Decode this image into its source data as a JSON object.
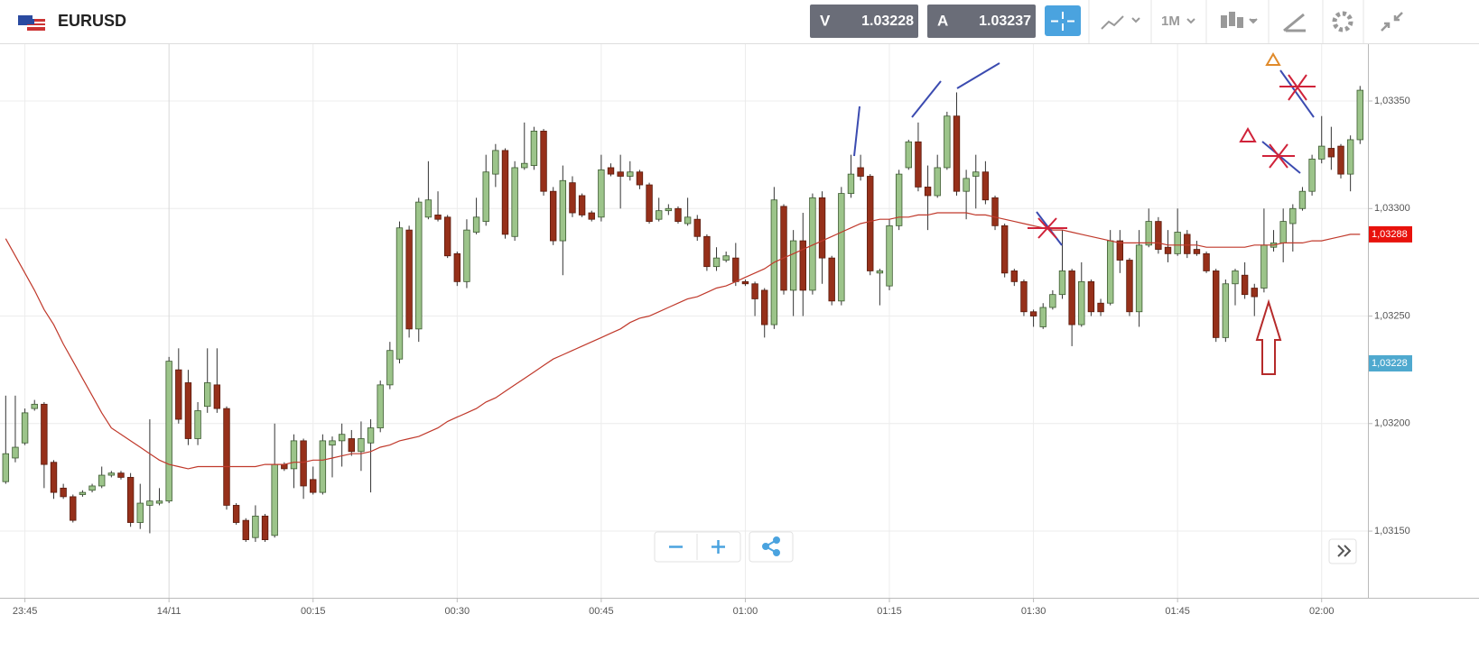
{
  "header": {
    "symbol": "EURUSD",
    "sell": {
      "label": "V",
      "price": "1.03228"
    },
    "buy": {
      "label": "A",
      "price": "1.03237"
    },
    "timeframe": "1M"
  },
  "chart_data": {
    "type": "candlestick",
    "categories": [
      null,
      null,
      "23:45",
      null,
      null,
      null,
      null,
      null,
      null,
      null,
      null,
      null,
      null,
      null,
      null,
      null,
      null,
      "14/11",
      null,
      null,
      null,
      null,
      null,
      null,
      null,
      null,
      null,
      null,
      null,
      null,
      null,
      null,
      "00:15",
      null,
      null,
      null,
      null,
      null,
      null,
      null,
      null,
      null,
      null,
      null,
      null,
      null,
      null,
      "00:30",
      null,
      null,
      null,
      null,
      null,
      null,
      null,
      null,
      null,
      null,
      null,
      null,
      null,
      null,
      "00:45",
      null,
      null,
      null,
      null,
      null,
      null,
      null,
      null,
      null,
      null,
      null,
      null,
      null,
      null,
      "01:00",
      null,
      null,
      null,
      null,
      null,
      null,
      null,
      null,
      null,
      null,
      null,
      null,
      null,
      null,
      "01:15",
      null,
      null,
      null,
      null,
      null,
      null,
      null,
      null,
      null,
      null,
      null,
      null,
      null,
      null,
      "01:30",
      null,
      null,
      null,
      null,
      null,
      null,
      null,
      null,
      null,
      null,
      null,
      null,
      null,
      null,
      "01:45",
      null,
      null,
      null,
      null,
      null,
      null,
      null,
      null,
      null,
      null,
      null,
      null,
      null,
      null,
      "02:00",
      null,
      null,
      null,
      null
    ],
    "open": [
      1.03173,
      1.03184,
      1.03191,
      1.03207,
      1.03209,
      1.03182,
      1.0317,
      1.03166,
      1.03167,
      1.03169,
      1.03171,
      1.03176,
      1.03177,
      1.03175,
      1.03154,
      1.03162,
      1.03163,
      1.03164,
      1.03225,
      1.03219,
      1.03193,
      1.03208,
      1.03218,
      1.03207,
      1.03162,
      1.03155,
      1.03147,
      1.03157,
      1.03148,
      1.03181,
      1.03179,
      1.03192,
      1.03174,
      1.03168,
      1.0319,
      1.03192,
      1.03193,
      1.03187,
      1.03191,
      1.03198,
      1.03218,
      1.0323,
      1.0329,
      1.03244,
      1.03296,
      1.03297,
      1.03296,
      1.03279,
      1.03266,
      1.03289,
      1.03294,
      1.03316,
      1.03327,
      1.03287,
      1.03319,
      1.0332,
      1.03336,
      1.03308,
      1.03285,
      1.03312,
      1.03306,
      1.03298,
      1.03296,
      1.03319,
      1.03317,
      1.03315,
      1.03317,
      1.03311,
      1.03295,
      1.03299,
      1.033,
      1.03293,
      1.03295,
      1.03287,
      1.03273,
      1.03276,
      1.03277,
      1.03266,
      1.03265,
      1.03262,
      1.03246,
      1.03301,
      1.03262,
      1.03285,
      1.03262,
      1.03305,
      1.03277,
      1.03257,
      1.03307,
      1.03319,
      1.03315,
      1.0327,
      1.03264,
      1.03292,
      1.03319,
      1.03331,
      1.0331,
      1.03306,
      1.03319,
      1.03343,
      1.03308,
      1.03315,
      1.03317,
      1.03305,
      1.03292,
      1.03271,
      1.03266,
      1.03252,
      1.03245,
      1.03254,
      1.0326,
      1.03271,
      1.03246,
      1.03266,
      1.03256,
      1.03256,
      1.03285,
      1.03276,
      1.03252,
      1.03283,
      1.03294,
      1.03282,
      1.03279,
      1.03288,
      1.03281,
      1.03279,
      1.03271,
      1.0324,
      1.03265,
      1.03269,
      1.03263,
      1.03263,
      1.03282,
      1.03284,
      1.03293,
      1.033,
      1.03308,
      1.03323,
      1.03328,
      1.03329,
      1.03316,
      1.03332
    ],
    "high": [
      1.03213,
      1.03213,
      1.03207,
      1.03211,
      1.0321,
      1.03183,
      1.03172,
      1.03167,
      1.03169,
      1.03172,
      1.0318,
      1.03178,
      1.03178,
      1.03177,
      1.03172,
      1.03202,
      1.0317,
      1.03231,
      1.03235,
      1.03225,
      1.0321,
      1.03235,
      1.03235,
      1.03208,
      1.03163,
      1.03156,
      1.03162,
      1.03158,
      1.032,
      1.03182,
      1.03195,
      1.03193,
      1.0318,
      1.03195,
      1.03194,
      1.032,
      1.03197,
      1.03201,
      1.03202,
      1.0322,
      1.03238,
      1.03294,
      1.03292,
      1.03305,
      1.03322,
      1.03308,
      1.03297,
      1.0328,
      1.03295,
      1.03305,
      1.03325,
      1.0333,
      1.03328,
      1.03322,
      1.0334,
      1.03338,
      1.03337,
      1.0331,
      1.0332,
      1.03315,
      1.03307,
      1.03299,
      1.03325,
      1.03321,
      1.03325,
      1.03322,
      1.03318,
      1.03312,
      1.03305,
      1.03302,
      1.03301,
      1.03305,
      1.03297,
      1.03288,
      1.03282,
      1.0328,
      1.03284,
      1.03267,
      1.03266,
      1.03263,
      1.0331,
      1.03302,
      1.0329,
      1.03298,
      1.03307,
      1.03308,
      1.03278,
      1.0331,
      1.03325,
      1.03325,
      1.03316,
      1.03272,
      1.03295,
      1.03318,
      1.03332,
      1.0334,
      1.0332,
      1.03325,
      1.03345,
      1.03354,
      1.03318,
      1.03325,
      1.03322,
      1.03306,
      1.03293,
      1.03272,
      1.03267,
      1.03253,
      1.03256,
      1.03262,
      1.0329,
      1.03272,
      1.03275,
      1.03267,
      1.03258,
      1.0329,
      1.0329,
      1.03277,
      1.0329,
      1.033,
      1.03296,
      1.0329,
      1.033,
      1.0329,
      1.03285,
      1.0328,
      1.03272,
      1.03267,
      1.03272,
      1.03275,
      1.03265,
      1.033,
      1.0329,
      1.033,
      1.03302,
      1.0331,
      1.03325,
      1.03343,
      1.03338,
      1.0333,
      1.03334,
      1.03357
    ],
    "low": [
      1.03172,
      1.03182,
      1.0319,
      1.03206,
      1.0317,
      1.03165,
      1.03165,
      1.03154,
      1.03166,
      1.03168,
      1.0317,
      1.03175,
      1.03174,
      1.03152,
      1.03151,
      1.03149,
      1.03162,
      1.03163,
      1.032,
      1.0319,
      1.0319,
      1.03205,
      1.03205,
      1.0316,
      1.03153,
      1.03145,
      1.03145,
      1.03145,
      1.03147,
      1.03178,
      1.0317,
      1.03165,
      1.03167,
      1.03167,
      1.03175,
      1.0318,
      1.03185,
      1.03178,
      1.03168,
      1.03196,
      1.03216,
      1.03228,
      1.0324,
      1.03238,
      1.03295,
      1.03294,
      1.03277,
      1.03264,
      1.03263,
      1.03288,
      1.03292,
      1.0331,
      1.03286,
      1.03285,
      1.03318,
      1.03318,
      1.03306,
      1.03283,
      1.03269,
      1.03296,
      1.03296,
      1.03294,
      1.03294,
      1.03315,
      1.033,
      1.03313,
      1.03309,
      1.03293,
      1.03294,
      1.03297,
      1.03293,
      1.03292,
      1.03285,
      1.03271,
      1.03271,
      1.03275,
      1.03264,
      1.03264,
      1.0325,
      1.0324,
      1.03244,
      1.0326,
      1.0325,
      1.0325,
      1.0326,
      1.03265,
      1.03255,
      1.03255,
      1.03305,
      1.03313,
      1.03269,
      1.03255,
      1.03262,
      1.0329,
      1.03318,
      1.03308,
      1.0329,
      1.03305,
      1.03318,
      1.03306,
      1.03295,
      1.033,
      1.03302,
      1.0329,
      1.03268,
      1.03264,
      1.0325,
      1.03245,
      1.03244,
      1.03253,
      1.03258,
      1.03236,
      1.03245,
      1.0325,
      1.0325,
      1.03255,
      1.0327,
      1.0325,
      1.03245,
      1.03282,
      1.03279,
      1.03275,
      1.03278,
      1.03277,
      1.03278,
      1.0327,
      1.03238,
      1.03238,
      1.03255,
      1.03258,
      1.0325,
      1.03261,
      1.0328,
      1.03275,
      1.0328,
      1.03299,
      1.03306,
      1.03321,
      1.03318,
      1.03314,
      1.03308,
      1.0333
    ],
    "close": [
      1.03186,
      1.03189,
      1.03205,
      1.03209,
      1.03181,
      1.03168,
      1.03166,
      1.03155,
      1.03168,
      1.03171,
      1.03176,
      1.03177,
      1.03175,
      1.03154,
      1.03163,
      1.03164,
      1.03164,
      1.03229,
      1.03202,
      1.03193,
      1.03206,
      1.03219,
      1.03207,
      1.03162,
      1.03154,
      1.03146,
      1.03157,
      1.03146,
      1.03181,
      1.03179,
      1.03192,
      1.03171,
      1.03168,
      1.03192,
      1.03192,
      1.03195,
      1.03187,
      1.03193,
      1.03198,
      1.03218,
      1.03234,
      1.03291,
      1.03244,
      1.03303,
      1.03304,
      1.03295,
      1.03278,
      1.03266,
      1.0329,
      1.03296,
      1.03317,
      1.03327,
      1.03288,
      1.03319,
      1.03321,
      1.03336,
      1.03308,
      1.03285,
      1.03313,
      1.03298,
      1.03297,
      1.03295,
      1.03318,
      1.03316,
      1.03315,
      1.03317,
      1.03311,
      1.03294,
      1.03299,
      1.033,
      1.03294,
      1.03296,
      1.03287,
      1.03273,
      1.03277,
      1.03278,
      1.03266,
      1.03265,
      1.03258,
      1.03246,
      1.03304,
      1.03262,
      1.03285,
      1.03262,
      1.03305,
      1.03277,
      1.03257,
      1.03307,
      1.03316,
      1.03315,
      1.03271,
      1.03271,
      1.03292,
      1.03316,
      1.03331,
      1.0331,
      1.03306,
      1.03319,
      1.03343,
      1.03308,
      1.03314,
      1.03317,
      1.03304,
      1.03292,
      1.0327,
      1.03266,
      1.03252,
      1.0325,
      1.03254,
      1.0326,
      1.03271,
      1.03246,
      1.03266,
      1.03252,
      1.03252,
      1.03285,
      1.03276,
      1.03252,
      1.03283,
      1.03294,
      1.03281,
      1.03279,
      1.03289,
      1.03279,
      1.03279,
      1.03271,
      1.0324,
      1.03265,
      1.03271,
      1.0326,
      1.03259,
      1.03283,
      1.03284,
      1.03294,
      1.033,
      1.03308,
      1.03323,
      1.03329,
      1.03324,
      1.03316,
      1.03332,
      1.03355
    ],
    "up_color": "#9cc48a",
    "down_color": "#96301a",
    "moving_average": {
      "color": "#c0392b",
      "values": [
        1.03286,
        1.03278,
        1.0327,
        1.03262,
        1.03253,
        1.03246,
        1.03237,
        1.03229,
        1.03221,
        1.03213,
        1.03205,
        1.03198,
        1.03195,
        1.03192,
        1.03189,
        1.03186,
        1.03183,
        1.03181,
        1.0318,
        1.03179,
        1.0318,
        1.0318,
        1.0318,
        1.0318,
        1.0318,
        1.0318,
        1.0318,
        1.03181,
        1.03181,
        1.03181,
        1.03182,
        1.03182,
        1.03183,
        1.03183,
        1.03184,
        1.03185,
        1.03186,
        1.03186,
        1.03187,
        1.03189,
        1.0319,
        1.03192,
        1.03193,
        1.03194,
        1.03196,
        1.03198,
        1.03201,
        1.03203,
        1.03205,
        1.03207,
        1.0321,
        1.03212,
        1.03215,
        1.03218,
        1.03221,
        1.03224,
        1.03227,
        1.0323,
        1.03232,
        1.03234,
        1.03236,
        1.03238,
        1.0324,
        1.03242,
        1.03244,
        1.03247,
        1.03249,
        1.0325,
        1.03252,
        1.03254,
        1.03256,
        1.03258,
        1.03259,
        1.03261,
        1.03263,
        1.03264,
        1.03266,
        1.03268,
        1.0327,
        1.03272,
        1.03275,
        1.03277,
        1.03279,
        1.03281,
        1.03283,
        1.03285,
        1.03287,
        1.03289,
        1.03291,
        1.03293,
        1.03294,
        1.03295,
        1.03295,
        1.03296,
        1.03296,
        1.03297,
        1.03297,
        1.03298,
        1.03298,
        1.03298,
        1.03298,
        1.03297,
        1.03297,
        1.03296,
        1.03295,
        1.03294,
        1.03293,
        1.03292,
        1.03291,
        1.0329,
        1.0329,
        1.03289,
        1.03288,
        1.03287,
        1.03286,
        1.03285,
        1.03284,
        1.03284,
        1.03284,
        1.03284,
        1.03284,
        1.03283,
        1.03283,
        1.03283,
        1.03283,
        1.03282,
        1.03282,
        1.03282,
        1.03282,
        1.03282,
        1.03283,
        1.03283,
        1.03283,
        1.03284,
        1.03284,
        1.03284,
        1.03285,
        1.03285,
        1.03286,
        1.03287,
        1.03288,
        1.03288
      ]
    },
    "ylim": [
      1.03119,
      1.03376
    ],
    "yticks": [
      {
        "value": 1.0315,
        "label": "1,03150"
      },
      {
        "value": 1.032,
        "label": "1,03200"
      },
      {
        "value": 1.0325,
        "label": "1,03250"
      },
      {
        "value": 1.033,
        "label": "1,03300"
      },
      {
        "value": 1.0335,
        "label": "1,03350"
      }
    ],
    "price_labels": [
      {
        "value": 1.03288,
        "label": "1,03288",
        "color": "#e8120c"
      },
      {
        "value": 1.03228,
        "label": "1,03228",
        "color": "#4fa9cf"
      }
    ],
    "grid": true
  }
}
